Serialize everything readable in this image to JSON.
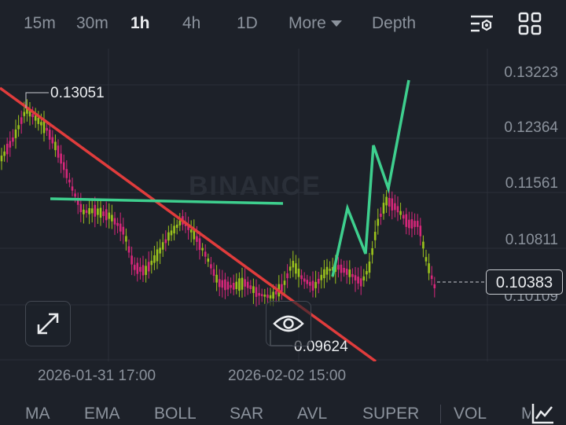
{
  "timeframes": [
    "15m",
    "30m",
    "1h",
    "4h",
    "1D"
  ],
  "active_timeframe": "1h",
  "more_label": "More",
  "depth_label": "Depth",
  "price_axis": [
    "0.13223",
    "0.12364",
    "0.11561",
    "0.10811",
    "0.10109"
  ],
  "current_price": "0.10383",
  "high_label": "0.13051",
  "low_label": "0.09624",
  "watermark": "BINANCE",
  "time_axis": [
    "2026-01-31 17:00",
    "2026-02-02 15:00"
  ],
  "indicators": [
    "MA",
    "EMA",
    "BOLL",
    "SAR",
    "AVL",
    "SUPER",
    "VOL",
    "M"
  ],
  "colors": {
    "up": "#9bc21c",
    "down": "#d6277a",
    "trend_down": "#e03c3c",
    "trend_flat": "#3ecf8e",
    "bg": "#1d2129"
  },
  "icons": {
    "settings": "chart-settings-icon",
    "layout": "grid-layout-icon",
    "expand": "expand-icon",
    "eye": "eye-icon",
    "drawing": "drawing-tool-icon"
  }
}
